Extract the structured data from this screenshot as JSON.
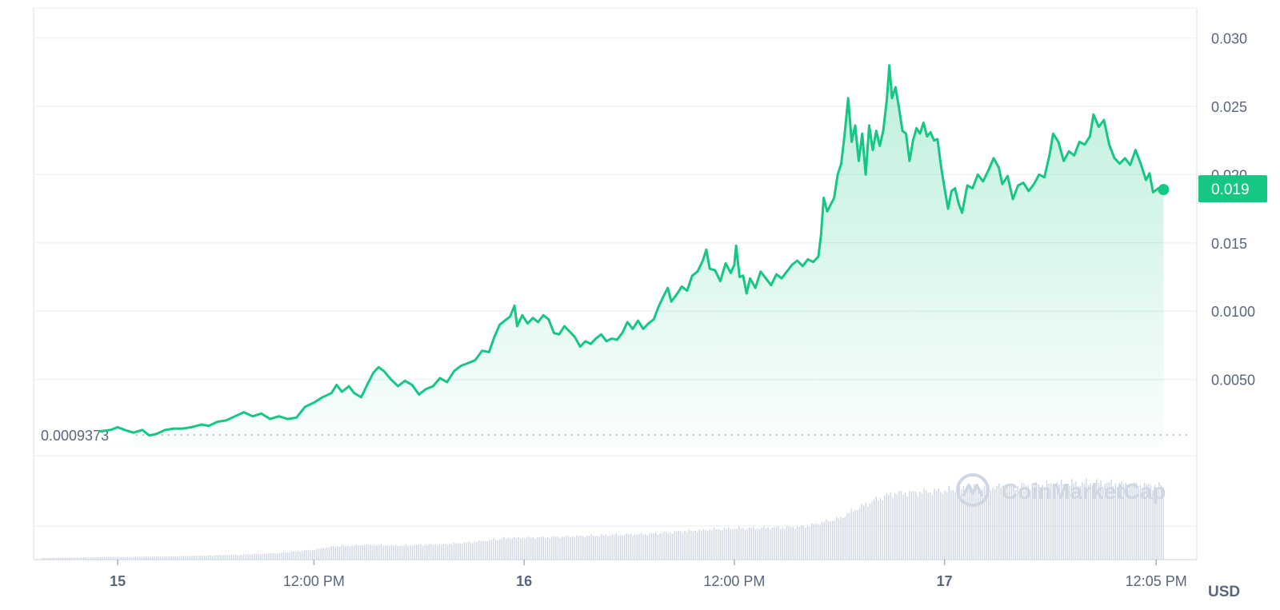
{
  "chart_data": {
    "type": "area",
    "currency": "USD",
    "x_ticks": [
      {
        "t": 0.8,
        "label": "15",
        "bold": true
      },
      {
        "t": 12.0,
        "label": "12:00 PM",
        "bold": false
      },
      {
        "t": 24.0,
        "label": "16",
        "bold": true
      },
      {
        "t": 36.0,
        "label": "12:00 PM",
        "bold": false
      },
      {
        "t": 48.0,
        "label": "17",
        "bold": true
      },
      {
        "t": 60.08,
        "label": "12:05 PM",
        "bold": false
      }
    ],
    "y_ticks": [
      {
        "value": 0.005,
        "label": "0.0050"
      },
      {
        "value": 0.01,
        "label": "0.0100"
      },
      {
        "value": 0.015,
        "label": "0.015"
      },
      {
        "value": 0.02,
        "label": "0.020"
      },
      {
        "value": 0.025,
        "label": "0.025"
      },
      {
        "value": 0.03,
        "label": "0.030"
      }
    ],
    "ylim": [
      0,
      0.0322
    ],
    "xlim": [
      -4,
      62.4
    ],
    "grid": true,
    "current_price": {
      "value": 0.0189,
      "label": "0.019"
    },
    "open_price": {
      "value": 0.0009373,
      "label": "0.0009373"
    },
    "series": [
      {
        "values": [
          [
            -0.2,
            0.0012
          ],
          [
            0.4,
            0.0013
          ],
          [
            0.8,
            0.0015
          ],
          [
            1.2,
            0.0013
          ],
          [
            1.7,
            0.0011
          ],
          [
            2.2,
            0.0013
          ],
          [
            2.6,
            0.0009
          ],
          [
            3.0,
            0.001
          ],
          [
            3.5,
            0.0013
          ],
          [
            4.0,
            0.0014
          ],
          [
            4.5,
            0.0014
          ],
          [
            5.0,
            0.0015
          ],
          [
            5.6,
            0.0017
          ],
          [
            6.0,
            0.0016
          ],
          [
            6.5,
            0.0019
          ],
          [
            7.0,
            0.002
          ],
          [
            7.5,
            0.0023
          ],
          [
            8.0,
            0.0026
          ],
          [
            8.5,
            0.0023
          ],
          [
            9.0,
            0.0025
          ],
          [
            9.5,
            0.0021
          ],
          [
            10.0,
            0.0023
          ],
          [
            10.5,
            0.0021
          ],
          [
            11.0,
            0.0022
          ],
          [
            11.5,
            0.003
          ],
          [
            12.0,
            0.0033
          ],
          [
            12.5,
            0.0037
          ],
          [
            13.0,
            0.004
          ],
          [
            13.3,
            0.0046
          ],
          [
            13.6,
            0.0041
          ],
          [
            14.0,
            0.0045
          ],
          [
            14.3,
            0.004
          ],
          [
            14.7,
            0.0037
          ],
          [
            15.0,
            0.0045
          ],
          [
            15.4,
            0.0055
          ],
          [
            15.7,
            0.0059
          ],
          [
            16.0,
            0.0056
          ],
          [
            16.4,
            0.005
          ],
          [
            16.8,
            0.0045
          ],
          [
            17.2,
            0.0049
          ],
          [
            17.6,
            0.0046
          ],
          [
            18.0,
            0.0039
          ],
          [
            18.4,
            0.0043
          ],
          [
            18.8,
            0.0045
          ],
          [
            19.2,
            0.0051
          ],
          [
            19.6,
            0.0048
          ],
          [
            20.0,
            0.0056
          ],
          [
            20.4,
            0.006
          ],
          [
            20.8,
            0.0062
          ],
          [
            21.2,
            0.0064
          ],
          [
            21.6,
            0.0071
          ],
          [
            22.0,
            0.007
          ],
          [
            22.3,
            0.0081
          ],
          [
            22.6,
            0.009
          ],
          [
            22.9,
            0.0093
          ],
          [
            23.2,
            0.0096
          ],
          [
            23.45,
            0.0104
          ],
          [
            23.6,
            0.0089
          ],
          [
            23.9,
            0.0097
          ],
          [
            24.2,
            0.0091
          ],
          [
            24.5,
            0.0095
          ],
          [
            24.8,
            0.0092
          ],
          [
            25.1,
            0.0097
          ],
          [
            25.4,
            0.0094
          ],
          [
            25.7,
            0.0084
          ],
          [
            26.0,
            0.0083
          ],
          [
            26.3,
            0.0089
          ],
          [
            26.6,
            0.0085
          ],
          [
            26.9,
            0.0081
          ],
          [
            27.2,
            0.0074
          ],
          [
            27.5,
            0.0078
          ],
          [
            27.8,
            0.0076
          ],
          [
            28.1,
            0.008
          ],
          [
            28.4,
            0.0083
          ],
          [
            28.7,
            0.0078
          ],
          [
            29.0,
            0.008
          ],
          [
            29.3,
            0.0079
          ],
          [
            29.6,
            0.0084
          ],
          [
            29.9,
            0.0092
          ],
          [
            30.2,
            0.0087
          ],
          [
            30.5,
            0.0093
          ],
          [
            30.8,
            0.0087
          ],
          [
            31.1,
            0.0091
          ],
          [
            31.4,
            0.0094
          ],
          [
            31.7,
            0.0104
          ],
          [
            32.0,
            0.0112
          ],
          [
            32.2,
            0.0117
          ],
          [
            32.4,
            0.0107
          ],
          [
            32.7,
            0.0112
          ],
          [
            33.0,
            0.0118
          ],
          [
            33.3,
            0.0115
          ],
          [
            33.6,
            0.0126
          ],
          [
            33.9,
            0.0129
          ],
          [
            34.2,
            0.0137
          ],
          [
            34.4,
            0.0145
          ],
          [
            34.6,
            0.0131
          ],
          [
            34.9,
            0.013
          ],
          [
            35.2,
            0.0122
          ],
          [
            35.5,
            0.0135
          ],
          [
            35.8,
            0.0128
          ],
          [
            36.0,
            0.0134
          ],
          [
            36.1,
            0.0148
          ],
          [
            36.3,
            0.0125
          ],
          [
            36.5,
            0.0126
          ],
          [
            36.7,
            0.0113
          ],
          [
            36.9,
            0.0124
          ],
          [
            37.2,
            0.0117
          ],
          [
            37.5,
            0.0129
          ],
          [
            37.8,
            0.0124
          ],
          [
            38.1,
            0.0119
          ],
          [
            38.4,
            0.0127
          ],
          [
            38.7,
            0.0124
          ],
          [
            39.0,
            0.0129
          ],
          [
            39.3,
            0.0134
          ],
          [
            39.6,
            0.0137
          ],
          [
            39.9,
            0.0133
          ],
          [
            40.2,
            0.0138
          ],
          [
            40.5,
            0.0136
          ],
          [
            40.8,
            0.014
          ],
          [
            40.95,
            0.0156
          ],
          [
            41.1,
            0.0183
          ],
          [
            41.3,
            0.0173
          ],
          [
            41.5,
            0.0178
          ],
          [
            41.7,
            0.0183
          ],
          [
            41.9,
            0.02
          ],
          [
            42.1,
            0.0208
          ],
          [
            42.3,
            0.023
          ],
          [
            42.5,
            0.0256
          ],
          [
            42.7,
            0.0224
          ],
          [
            42.9,
            0.0236
          ],
          [
            43.1,
            0.021
          ],
          [
            43.3,
            0.023
          ],
          [
            43.5,
            0.02
          ],
          [
            43.7,
            0.0236
          ],
          [
            43.9,
            0.0218
          ],
          [
            44.1,
            0.0232
          ],
          [
            44.3,
            0.0221
          ],
          [
            44.5,
            0.0232
          ],
          [
            44.7,
            0.0254
          ],
          [
            44.85,
            0.028
          ],
          [
            45.0,
            0.0256
          ],
          [
            45.2,
            0.0264
          ],
          [
            45.4,
            0.0249
          ],
          [
            45.6,
            0.0232
          ],
          [
            45.8,
            0.023
          ],
          [
            46.0,
            0.021
          ],
          [
            46.2,
            0.0225
          ],
          [
            46.4,
            0.0234
          ],
          [
            46.6,
            0.023
          ],
          [
            46.8,
            0.0238
          ],
          [
            47.0,
            0.0228
          ],
          [
            47.2,
            0.0231
          ],
          [
            47.4,
            0.0225
          ],
          [
            47.6,
            0.0226
          ],
          [
            47.8,
            0.0206
          ],
          [
            48.0,
            0.019
          ],
          [
            48.2,
            0.0175
          ],
          [
            48.4,
            0.0188
          ],
          [
            48.6,
            0.019
          ],
          [
            48.8,
            0.0179
          ],
          [
            49.0,
            0.0172
          ],
          [
            49.3,
            0.0192
          ],
          [
            49.6,
            0.019
          ],
          [
            49.9,
            0.02
          ],
          [
            50.2,
            0.0195
          ],
          [
            50.5,
            0.0203
          ],
          [
            50.8,
            0.0212
          ],
          [
            51.1,
            0.0205
          ],
          [
            51.3,
            0.0193
          ],
          [
            51.6,
            0.0199
          ],
          [
            51.9,
            0.0182
          ],
          [
            52.2,
            0.0192
          ],
          [
            52.5,
            0.0194
          ],
          [
            52.8,
            0.0188
          ],
          [
            53.1,
            0.0193
          ],
          [
            53.4,
            0.02
          ],
          [
            53.7,
            0.0198
          ],
          [
            54.0,
            0.0215
          ],
          [
            54.2,
            0.023
          ],
          [
            54.5,
            0.0224
          ],
          [
            54.8,
            0.021
          ],
          [
            55.1,
            0.0217
          ],
          [
            55.4,
            0.0214
          ],
          [
            55.7,
            0.0224
          ],
          [
            56.0,
            0.0222
          ],
          [
            56.3,
            0.0228
          ],
          [
            56.5,
            0.0244
          ],
          [
            56.8,
            0.0235
          ],
          [
            57.1,
            0.024
          ],
          [
            57.4,
            0.0222
          ],
          [
            57.7,
            0.0212
          ],
          [
            58.0,
            0.0208
          ],
          [
            58.3,
            0.0212
          ],
          [
            58.6,
            0.0207
          ],
          [
            58.9,
            0.0218
          ],
          [
            59.2,
            0.0208
          ],
          [
            59.5,
            0.0196
          ],
          [
            59.7,
            0.0201
          ],
          [
            59.9,
            0.0187
          ],
          [
            60.2,
            0.019
          ],
          [
            60.5,
            0.0189
          ]
        ]
      }
    ],
    "volume": {
      "values": [
        [
          -4,
          0.02
        ],
        [
          0,
          0.03
        ],
        [
          4,
          0.04
        ],
        [
          8,
          0.06
        ],
        [
          10,
          0.08
        ],
        [
          12,
          0.12
        ],
        [
          13,
          0.16
        ],
        [
          15,
          0.18
        ],
        [
          17,
          0.17
        ],
        [
          19,
          0.18
        ],
        [
          21,
          0.21
        ],
        [
          23,
          0.26
        ],
        [
          25,
          0.27
        ],
        [
          28,
          0.29
        ],
        [
          31,
          0.31
        ],
        [
          33,
          0.34
        ],
        [
          35,
          0.37
        ],
        [
          37,
          0.38
        ],
        [
          39,
          0.39
        ],
        [
          40,
          0.4
        ],
        [
          41,
          0.45
        ],
        [
          42,
          0.5
        ],
        [
          43,
          0.62
        ],
        [
          44,
          0.72
        ],
        [
          45,
          0.8
        ],
        [
          47,
          0.82
        ],
        [
          49,
          0.85
        ],
        [
          51,
          0.88
        ],
        [
          53,
          0.9
        ],
        [
          55,
          0.92
        ],
        [
          57,
          0.93
        ],
        [
          59,
          0.9
        ],
        [
          60.5,
          0.89
        ]
      ]
    }
  },
  "watermark": {
    "text": "CoinMarketCap"
  }
}
